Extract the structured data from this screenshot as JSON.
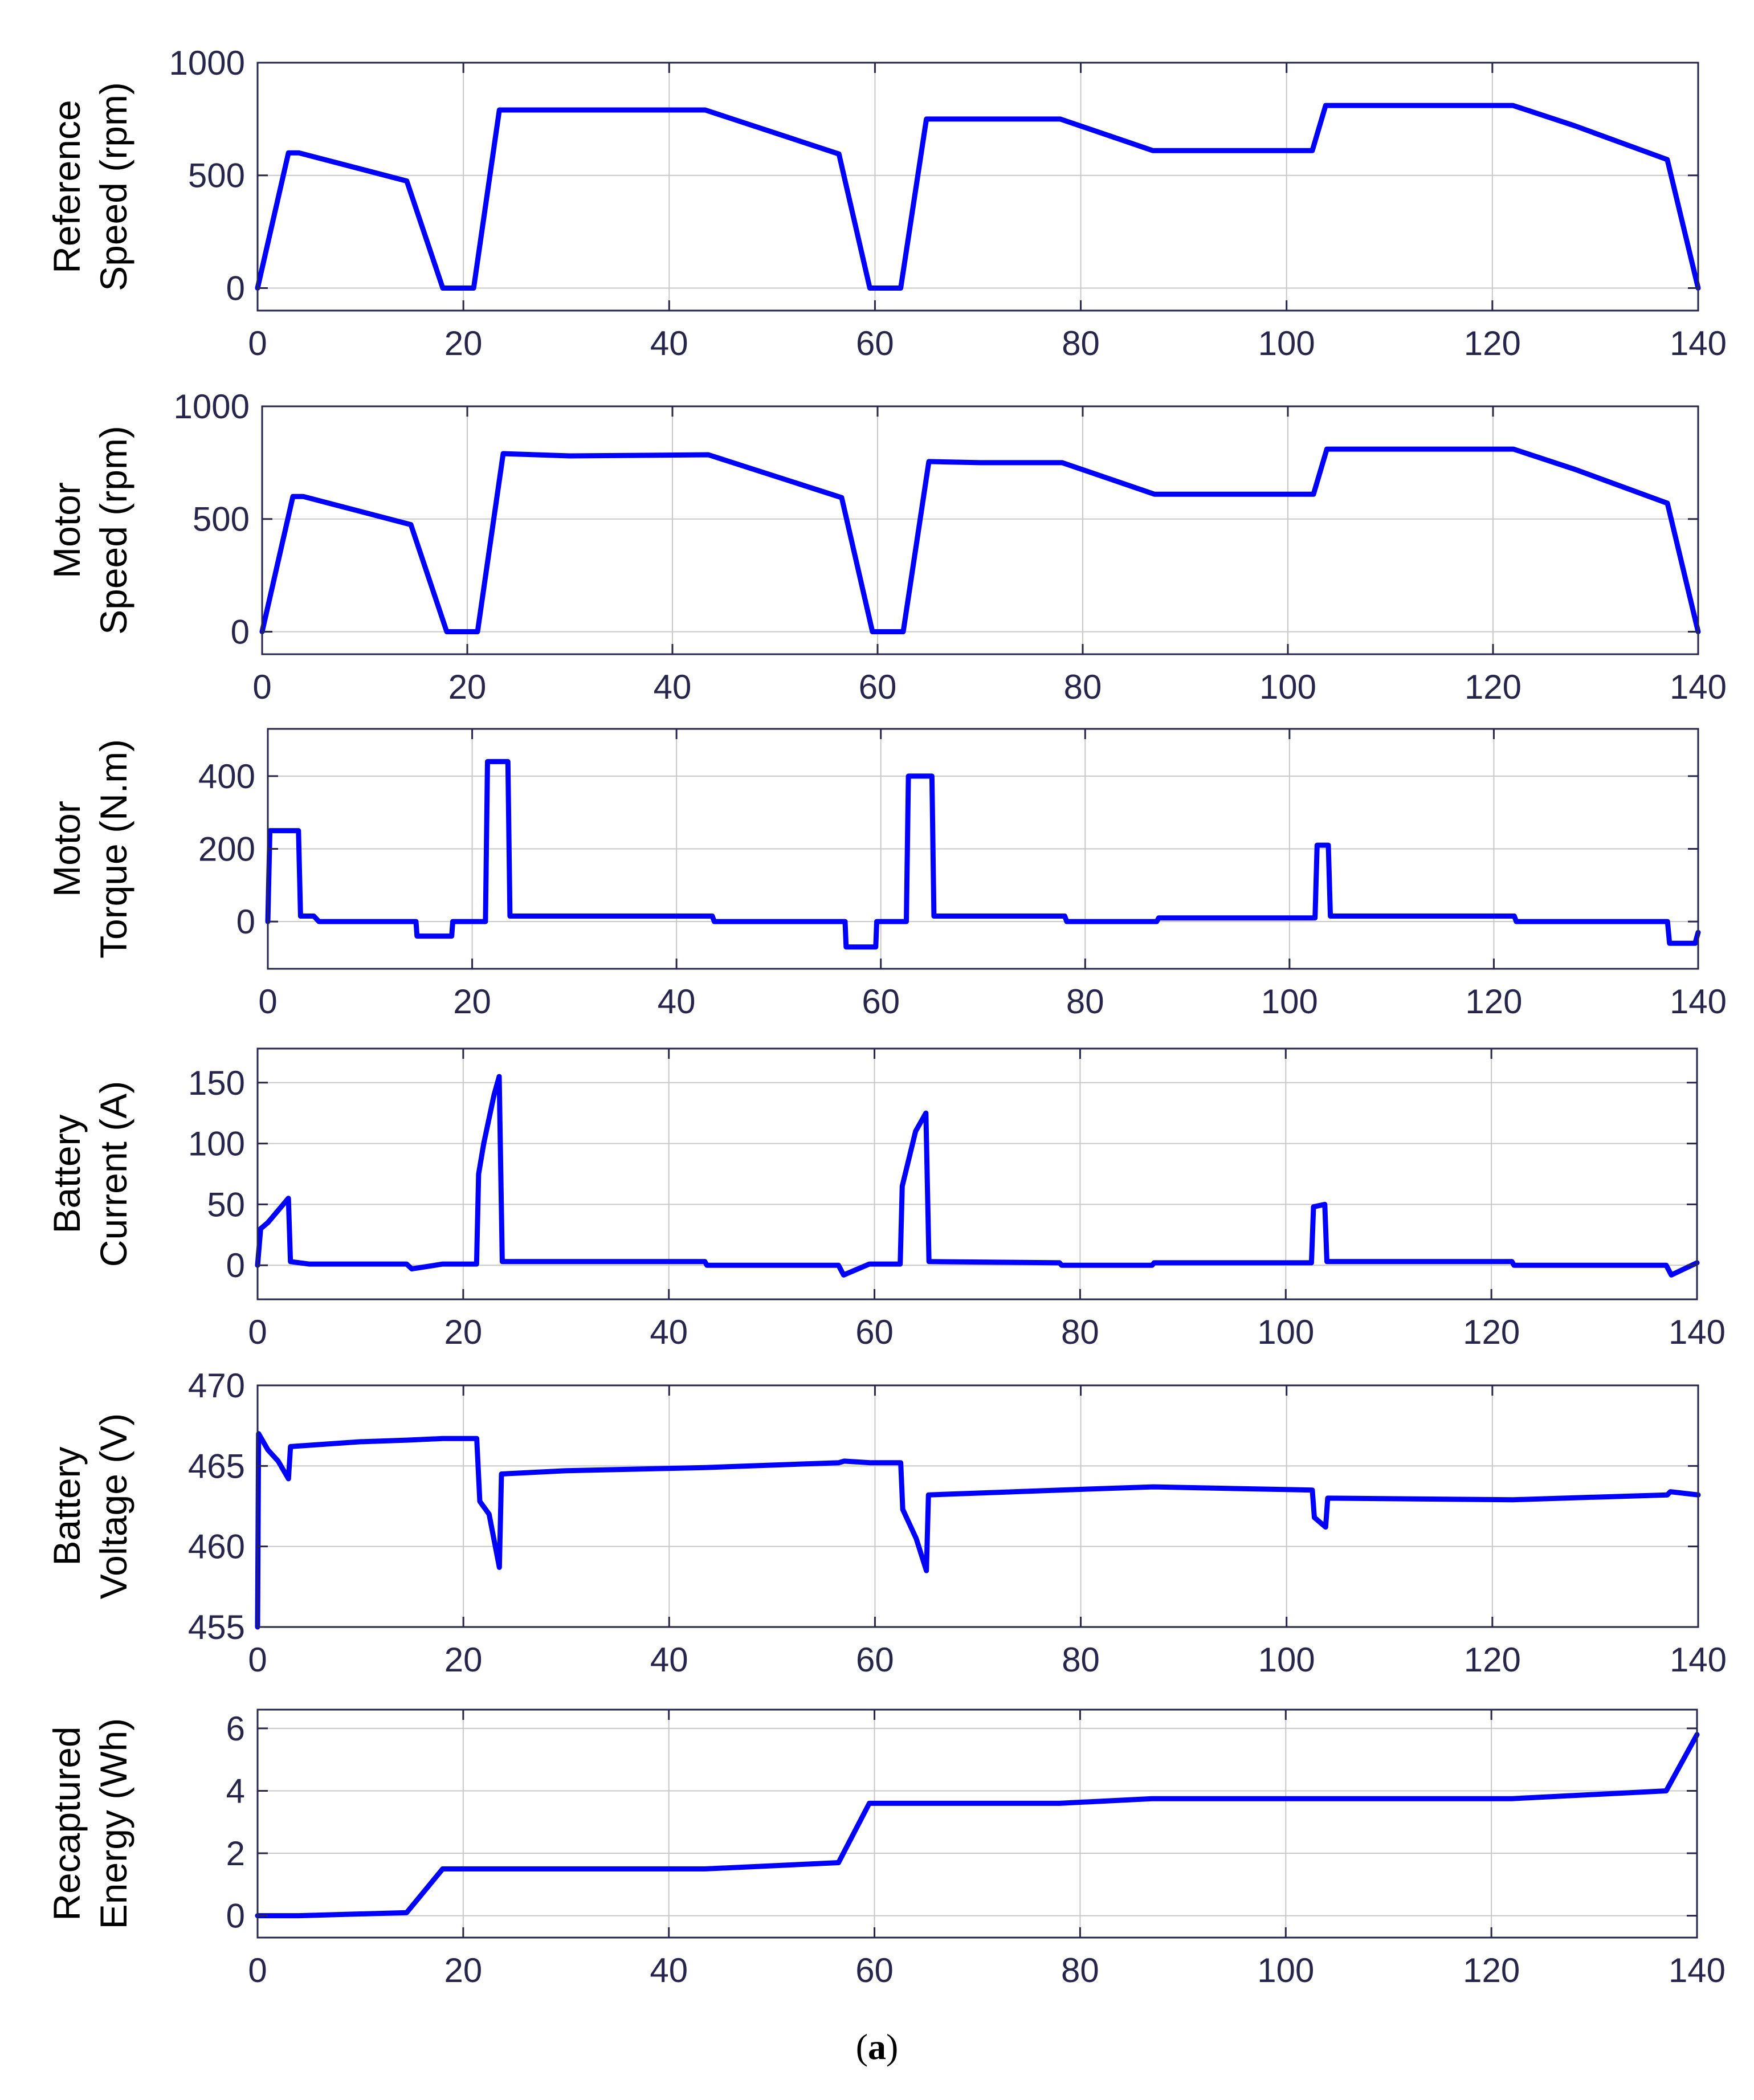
{
  "caption": {
    "open": "(",
    "label": "a",
    "close": ")"
  },
  "chart_data": [
    {
      "type": "line",
      "ylabel_lines": [
        "Reference",
        "Speed (rpm)"
      ],
      "xlim": [
        0,
        140
      ],
      "ylim": [
        -100,
        1000
      ],
      "xticks": [
        0,
        20,
        40,
        60,
        80,
        100,
        120,
        140
      ],
      "yticks": [
        0,
        500,
        1000
      ],
      "grid": true,
      "series": [
        {
          "name": "Reference Speed",
          "color": "#0000ff",
          "points": [
            [
              0,
              0
            ],
            [
              3,
              600
            ],
            [
              4,
              600
            ],
            [
              14.5,
              475
            ],
            [
              18,
              0
            ],
            [
              21,
              0
            ],
            [
              23.5,
              790
            ],
            [
              43.5,
              790
            ],
            [
              56.5,
              595
            ],
            [
              59.5,
              0
            ],
            [
              62.5,
              0
            ],
            [
              65,
              750
            ],
            [
              78,
              750
            ],
            [
              87,
              610
            ],
            [
              102.5,
              610
            ],
            [
              103.8,
              810
            ],
            [
              122,
              810
            ],
            [
              128,
              720
            ],
            [
              137,
              570
            ],
            [
              140,
              0
            ]
          ]
        }
      ]
    },
    {
      "type": "line",
      "ylabel_lines": [
        "Motor",
        "Speed (rpm)"
      ],
      "xlim": [
        0,
        140
      ],
      "ylim": [
        -100,
        1000
      ],
      "xticks": [
        0,
        20,
        40,
        60,
        80,
        100,
        120,
        140
      ],
      "yticks": [
        0,
        500,
        1000
      ],
      "grid": true,
      "series": [
        {
          "name": "Motor Speed",
          "color": "#0000ff",
          "points": [
            [
              0,
              0
            ],
            [
              3,
              600
            ],
            [
              4,
              600
            ],
            [
              14.5,
              475
            ],
            [
              18,
              0
            ],
            [
              21,
              0
            ],
            [
              23.5,
              790
            ],
            [
              30,
              780
            ],
            [
              43.5,
              785
            ],
            [
              56.5,
              595
            ],
            [
              59.5,
              0
            ],
            [
              62.5,
              0
            ],
            [
              65,
              755
            ],
            [
              70,
              750
            ],
            [
              78,
              750
            ],
            [
              87,
              610
            ],
            [
              102.5,
              610
            ],
            [
              103.8,
              810
            ],
            [
              122,
              810
            ],
            [
              128,
              720
            ],
            [
              137,
              570
            ],
            [
              140,
              0
            ]
          ]
        }
      ]
    },
    {
      "type": "line",
      "ylabel_lines": [
        "Motor",
        "Torque (N.m)"
      ],
      "xlim": [
        0,
        140
      ],
      "ylim": [
        -130,
        530
      ],
      "xticks": [
        0,
        20,
        40,
        60,
        80,
        100,
        120,
        140
      ],
      "yticks": [
        0,
        200,
        400
      ],
      "grid": true,
      "series": [
        {
          "name": "Motor Torque",
          "color": "#0000ff",
          "points": [
            [
              0,
              0
            ],
            [
              0.2,
              250
            ],
            [
              3,
              250
            ],
            [
              3.2,
              15
            ],
            [
              4.5,
              15
            ],
            [
              5,
              0
            ],
            [
              14.5,
              0
            ],
            [
              14.6,
              -40
            ],
            [
              18,
              -40
            ],
            [
              18.1,
              0
            ],
            [
              21.3,
              0
            ],
            [
              21.5,
              440
            ],
            [
              23.5,
              440
            ],
            [
              23.7,
              15
            ],
            [
              43.5,
              15
            ],
            [
              43.7,
              0
            ],
            [
              56.5,
              0
            ],
            [
              56.6,
              -70
            ],
            [
              59.5,
              -70
            ],
            [
              59.6,
              0
            ],
            [
              62.5,
              0
            ],
            [
              62.7,
              400
            ],
            [
              65,
              400
            ],
            [
              65.2,
              15
            ],
            [
              78,
              15
            ],
            [
              78.2,
              0
            ],
            [
              87,
              0
            ],
            [
              87.2,
              10
            ],
            [
              102.5,
              10
            ],
            [
              102.7,
              210
            ],
            [
              103.8,
              210
            ],
            [
              104,
              15
            ],
            [
              122,
              15
            ],
            [
              122.2,
              0
            ],
            [
              137,
              0
            ],
            [
              137.2,
              -60
            ],
            [
              139.7,
              -60
            ],
            [
              140,
              -30
            ]
          ]
        }
      ]
    },
    {
      "type": "line",
      "ylabel_lines": [
        "Battery",
        "Current (A)"
      ],
      "xlim": [
        0,
        140
      ],
      "ylim": [
        -28,
        178
      ],
      "xticks": [
        0,
        20,
        40,
        60,
        80,
        100,
        120,
        140
      ],
      "yticks": [
        0,
        50,
        100,
        150
      ],
      "grid": true,
      "series": [
        {
          "name": "Battery Current",
          "color": "#0000ff",
          "points": [
            [
              0,
              0
            ],
            [
              0.3,
              30
            ],
            [
              1,
              35
            ],
            [
              2,
              45
            ],
            [
              3,
              55
            ],
            [
              3.2,
              3
            ],
            [
              5,
              1
            ],
            [
              14.5,
              1
            ],
            [
              15,
              -3
            ],
            [
              18,
              1
            ],
            [
              21.3,
              1
            ],
            [
              21.5,
              75
            ],
            [
              22,
              100
            ],
            [
              23,
              140
            ],
            [
              23.5,
              155
            ],
            [
              23.8,
              3
            ],
            [
              43.5,
              3
            ],
            [
              43.7,
              0
            ],
            [
              56.5,
              0
            ],
            [
              57,
              -8
            ],
            [
              59.5,
              1
            ],
            [
              62.5,
              1
            ],
            [
              62.7,
              65
            ],
            [
              64,
              110
            ],
            [
              65,
              125
            ],
            [
              65.3,
              3
            ],
            [
              78,
              2
            ],
            [
              78.2,
              0
            ],
            [
              87,
              0
            ],
            [
              87.2,
              2
            ],
            [
              102.5,
              2
            ],
            [
              102.7,
              48
            ],
            [
              103.8,
              50
            ],
            [
              104,
              3
            ],
            [
              122,
              3
            ],
            [
              122.2,
              0
            ],
            [
              137,
              0
            ],
            [
              137.5,
              -8
            ],
            [
              140,
              2
            ]
          ]
        }
      ]
    },
    {
      "type": "line",
      "ylabel_lines": [
        "Battery",
        "Voltage (V)"
      ],
      "xlim": [
        0,
        140
      ],
      "ylim": [
        455,
        470
      ],
      "xticks": [
        0,
        20,
        40,
        60,
        80,
        100,
        120,
        140
      ],
      "yticks": [
        455,
        460,
        465,
        470
      ],
      "grid": true,
      "series": [
        {
          "name": "Battery Voltage",
          "color": "#0000ff",
          "points": [
            [
              0,
              455
            ],
            [
              0.1,
              467
            ],
            [
              1,
              466
            ],
            [
              2,
              465.3
            ],
            [
              3,
              464.2
            ],
            [
              3.2,
              466.2
            ],
            [
              10,
              466.5
            ],
            [
              14.5,
              466.6
            ],
            [
              18,
              466.7
            ],
            [
              21.3,
              466.7
            ],
            [
              21.6,
              462.8
            ],
            [
              22.5,
              462
            ],
            [
              23.5,
              458.7
            ],
            [
              23.7,
              464.5
            ],
            [
              30,
              464.7
            ],
            [
              43.5,
              464.9
            ],
            [
              56.5,
              465.2
            ],
            [
              57,
              465.3
            ],
            [
              59.5,
              465.2
            ],
            [
              62.5,
              465.2
            ],
            [
              62.7,
              462.3
            ],
            [
              64,
              460.5
            ],
            [
              65,
              458.5
            ],
            [
              65.2,
              463.2
            ],
            [
              78,
              463.5
            ],
            [
              87,
              463.7
            ],
            [
              102.5,
              463.5
            ],
            [
              102.7,
              461.8
            ],
            [
              103.8,
              461.2
            ],
            [
              104,
              463
            ],
            [
              122,
              462.9
            ],
            [
              137,
              463.2
            ],
            [
              137.3,
              463.4
            ],
            [
              140,
              463.2
            ]
          ]
        }
      ]
    },
    {
      "type": "line",
      "ylabel_lines": [
        "Recaptured",
        "Energy (Wh)"
      ],
      "xlim": [
        0,
        140
      ],
      "ylim": [
        -0.7,
        6.6
      ],
      "xticks": [
        0,
        20,
        40,
        60,
        80,
        100,
        120,
        140
      ],
      "yticks": [
        0,
        2,
        4,
        6
      ],
      "grid": true,
      "series": [
        {
          "name": "Recaptured Energy",
          "color": "#0000ff",
          "points": [
            [
              0,
              0
            ],
            [
              4,
              0
            ],
            [
              14.5,
              0.1
            ],
            [
              18,
              1.5
            ],
            [
              43.5,
              1.5
            ],
            [
              56.5,
              1.7
            ],
            [
              59.5,
              3.6
            ],
            [
              78,
              3.6
            ],
            [
              87,
              3.75
            ],
            [
              102.5,
              3.75
            ],
            [
              122,
              3.75
            ],
            [
              137,
              4
            ],
            [
              140,
              5.8
            ]
          ]
        }
      ]
    }
  ]
}
